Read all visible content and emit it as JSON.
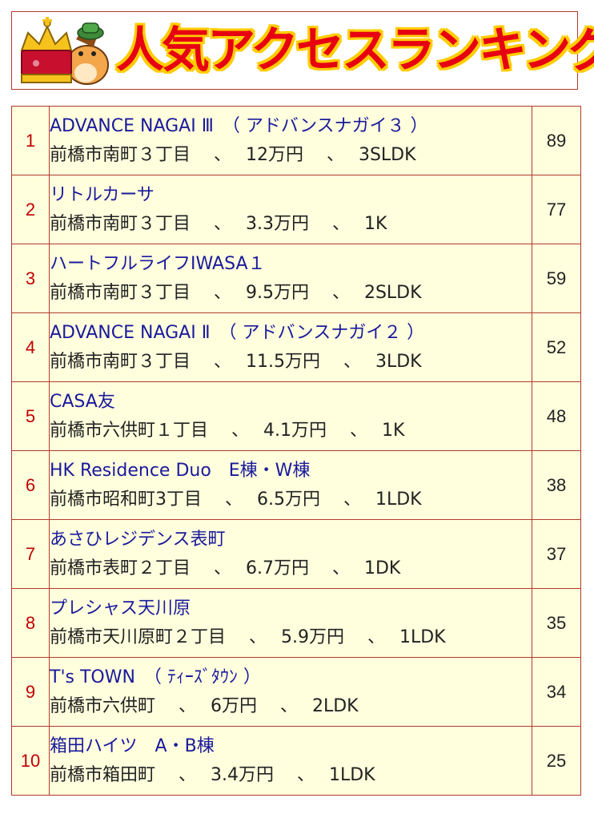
{
  "header": {
    "title": "人気アクセスランキング",
    "mascot_icon": "crowned-horse-mascot-icon",
    "colors": {
      "title": "#e60012",
      "outline": "#ffcc00",
      "border": "#b23a2a",
      "row_bg": "#ffffde",
      "link": "#1a1a9c",
      "rank": "#c00000"
    }
  },
  "ranking": [
    {
      "rank": "1",
      "name": "ADVANCE NAGAI Ⅲ　（ アドバンスナガイ３ ）",
      "detail": "前橋市南町３丁目　 、　 12万円　 、　 3SLDK",
      "count": "89"
    },
    {
      "rank": "2",
      "name": "リトルカーサ",
      "detail": "前橋市南町３丁目　 、　 3.3万円　 、　 1K",
      "count": "77"
    },
    {
      "rank": "3",
      "name": "ハートフルライフIWASA１",
      "detail": "前橋市南町３丁目　 、　 9.5万円　 、　 2SLDK",
      "count": "59"
    },
    {
      "rank": "4",
      "name": "ADVANCE NAGAI Ⅱ　（ アドバンスナガイ２ ）",
      "detail": "前橋市南町３丁目　 、　 11.5万円　 、　 3LDK",
      "count": "52"
    },
    {
      "rank": "5",
      "name": "CASA友",
      "detail": "前橋市六供町１丁目　 、　 4.1万円　 、　 1K",
      "count": "48"
    },
    {
      "rank": "6",
      "name": "HK Residence Duo　E棟・W棟",
      "detail": "前橋市昭和町3丁目　 、　 6.5万円　 、　 1LDK",
      "count": "38"
    },
    {
      "rank": "7",
      "name": "あさひレジデンス表町",
      "detail": "前橋市表町２丁目　 、　 6.7万円　 、　 1DK",
      "count": "37"
    },
    {
      "rank": "8",
      "name": "プレシャス天川原",
      "detail": "前橋市天川原町２丁目　 、　 5.9万円　 、　 1LDK",
      "count": "35"
    },
    {
      "rank": "9",
      "name": "T's TOWN　（ ﾃｨｰｽﾞﾀｳﾝ ）",
      "detail": "前橋市六供町　 、　 6万円　 、　 2LDK",
      "count": "34"
    },
    {
      "rank": "10",
      "name": "箱田ハイツ　A・B棟",
      "detail": "前橋市箱田町　 、　 3.4万円　 、　 1LDK",
      "count": "25"
    }
  ]
}
